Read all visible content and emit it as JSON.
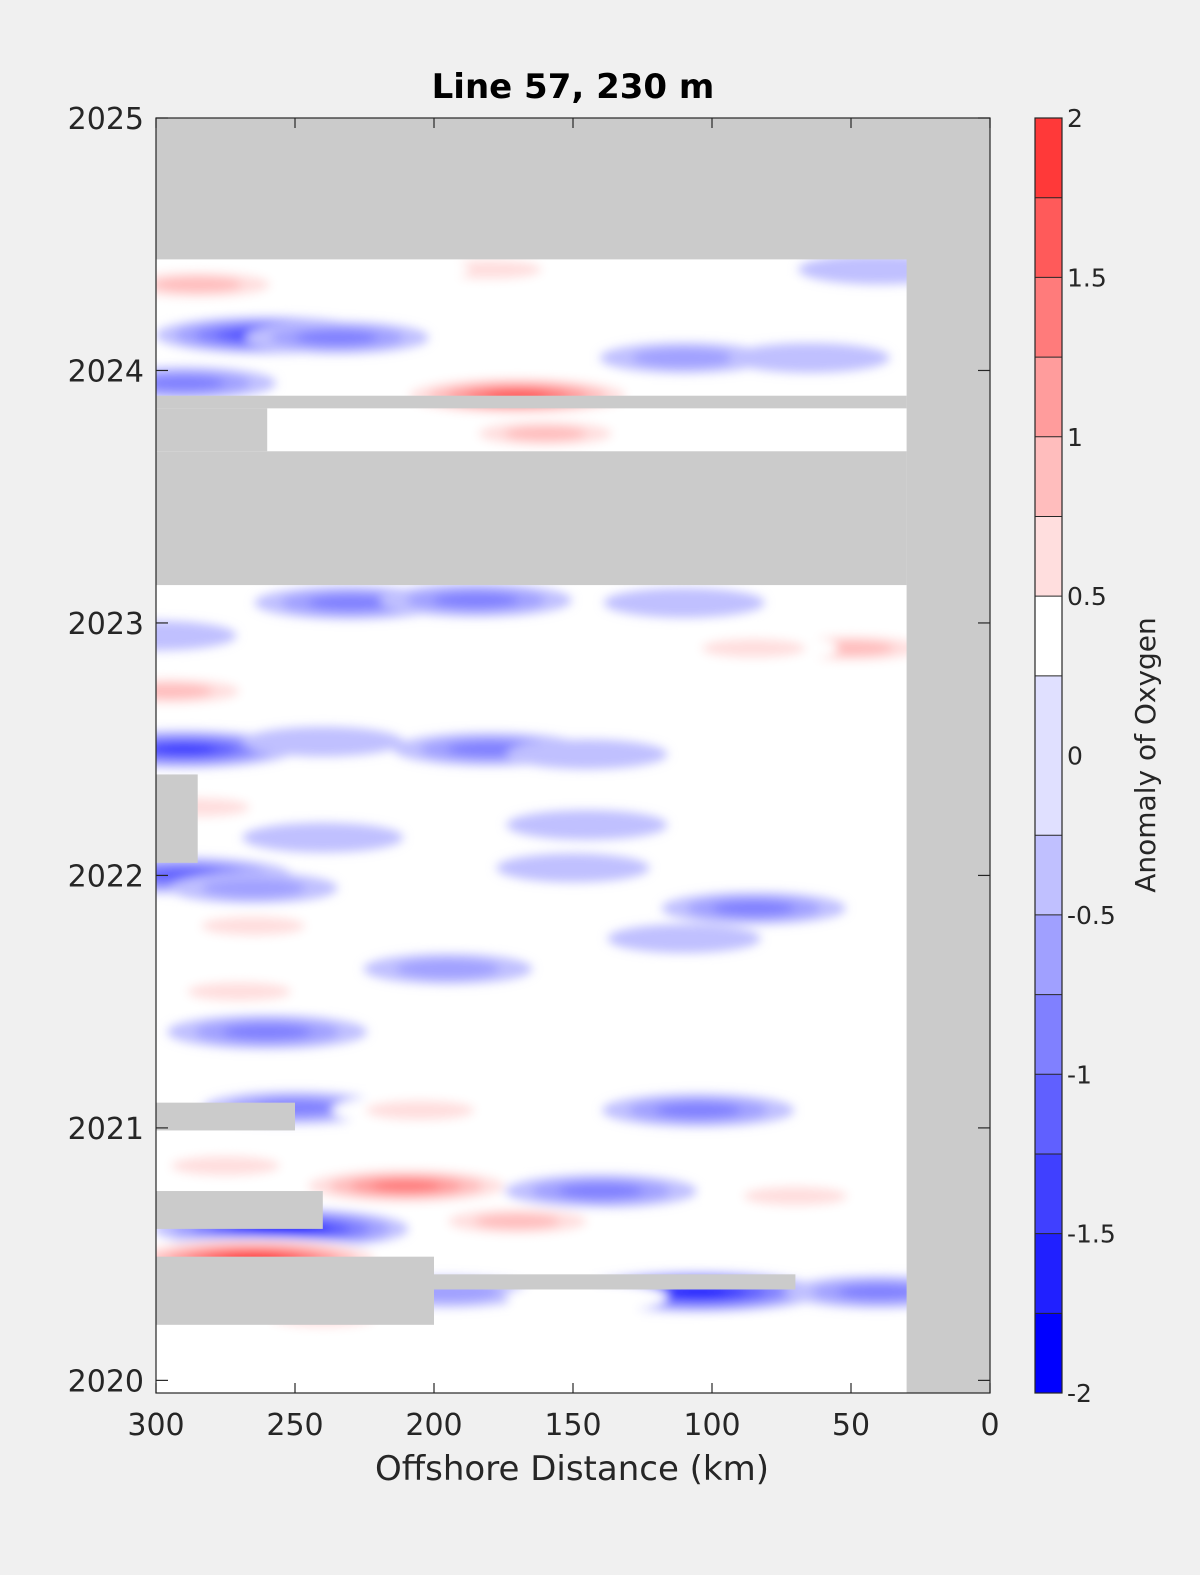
{
  "chart_data": {
    "type": "heatmap",
    "title": "Line 57, 230 m",
    "xlabel": "Offshore Distance (km)",
    "ylabel": "",
    "xlim": [
      300,
      0
    ],
    "x_reversed": true,
    "ylim": [
      2019.95,
      2025
    ],
    "xticks": [
      300,
      250,
      200,
      150,
      100,
      50,
      0
    ],
    "yticks": [
      2020,
      2021,
      2022,
      2023,
      2024,
      2025
    ],
    "colorbar": {
      "label": "Anomaly of Oxygen",
      "range": [
        -2,
        2
      ],
      "ticks": [
        -2,
        -1.5,
        -1,
        -0.5,
        0,
        0.5,
        1,
        1.5,
        2
      ],
      "tick_labels": [
        "-2",
        "-1.5",
        "-1",
        "-0.5",
        "0",
        "0.5",
        "1",
        "1.5",
        "2"
      ],
      "levels": [
        -2,
        -1.75,
        -1.5,
        -1.25,
        -1,
        -0.75,
        -0.5,
        -0.25,
        0.25,
        0.5,
        0.75,
        1,
        1.25,
        1.5,
        1.75,
        2
      ],
      "colors": [
        "#0000ff",
        "#2020ff",
        "#4040ff",
        "#6060ff",
        "#8080ff",
        "#a0a0ff",
        "#c0c0ff",
        "#e0e0ff",
        "#ffffff",
        "#ffdede",
        "#ffbdbd",
        "#ff9c9c",
        "#ff7b7b",
        "#ff5a5a",
        "#ff3939",
        "#ff0000"
      ]
    },
    "no_data_color": "#cbcbcb",
    "background_color": "#f0f0f0",
    "anomalies": [
      {
        "x": 285,
        "y": 2024.34,
        "v": 1.0
      },
      {
        "x": 260,
        "y": 2024.14,
        "v": -1.3
      },
      {
        "x": 235,
        "y": 2024.13,
        "v": -0.8
      },
      {
        "x": 290,
        "y": 2023.95,
        "v": -0.8
      },
      {
        "x": 170,
        "y": 2023.9,
        "v": 1.7
      },
      {
        "x": 160,
        "y": 2023.75,
        "v": 0.8
      },
      {
        "x": 100,
        "y": 2024.3,
        "v": 0.5
      },
      {
        "x": 110,
        "y": 2024.05,
        "v": -0.6
      },
      {
        "x": 65,
        "y": 2024.05,
        "v": -0.5
      },
      {
        "x": 180,
        "y": 2024.4,
        "v": 0.6
      },
      {
        "x": 215,
        "y": 2024.4,
        "v": 0.4
      },
      {
        "x": 40,
        "y": 2024.4,
        "v": -0.5
      },
      {
        "x": 230,
        "y": 2023.08,
        "v": -0.9
      },
      {
        "x": 185,
        "y": 2023.09,
        "v": -0.9
      },
      {
        "x": 110,
        "y": 2023.08,
        "v": -0.5
      },
      {
        "x": 300,
        "y": 2022.95,
        "v": -0.5
      },
      {
        "x": 295,
        "y": 2022.73,
        "v": 0.9
      },
      {
        "x": 50,
        "y": 2022.9,
        "v": 0.9
      },
      {
        "x": 85,
        "y": 2022.9,
        "v": 0.6
      },
      {
        "x": 165,
        "y": 2022.87,
        "v": 0.5
      },
      {
        "x": 110,
        "y": 2022.72,
        "v": 0.4
      },
      {
        "x": 290,
        "y": 2022.5,
        "v": -1.3
      },
      {
        "x": 240,
        "y": 2022.53,
        "v": -0.5
      },
      {
        "x": 180,
        "y": 2022.5,
        "v": -0.9
      },
      {
        "x": 145,
        "y": 2022.48,
        "v": -0.5
      },
      {
        "x": 285,
        "y": 2022.27,
        "v": 0.6
      },
      {
        "x": 290,
        "y": 2022.0,
        "v": -1.2
      },
      {
        "x": 265,
        "y": 2021.95,
        "v": -0.6
      },
      {
        "x": 240,
        "y": 2022.15,
        "v": -0.5
      },
      {
        "x": 145,
        "y": 2022.2,
        "v": -0.5
      },
      {
        "x": 150,
        "y": 2022.03,
        "v": -0.4
      },
      {
        "x": 85,
        "y": 2021.87,
        "v": -0.8
      },
      {
        "x": 110,
        "y": 2021.75,
        "v": -0.4
      },
      {
        "x": 265,
        "y": 2021.8,
        "v": 0.6
      },
      {
        "x": 190,
        "y": 2021.83,
        "v": 0.5
      },
      {
        "x": 195,
        "y": 2021.63,
        "v": -0.6
      },
      {
        "x": 270,
        "y": 2021.54,
        "v": 0.6
      },
      {
        "x": 115,
        "y": 2021.55,
        "v": 0.4
      },
      {
        "x": 260,
        "y": 2021.38,
        "v": -1.0
      },
      {
        "x": 165,
        "y": 2021.38,
        "v": 0.5
      },
      {
        "x": 250,
        "y": 2021.08,
        "v": -0.8
      },
      {
        "x": 205,
        "y": 2021.07,
        "v": 0.7
      },
      {
        "x": 105,
        "y": 2021.07,
        "v": -0.9
      },
      {
        "x": 275,
        "y": 2020.85,
        "v": 0.7
      },
      {
        "x": 210,
        "y": 2020.77,
        "v": 1.5
      },
      {
        "x": 170,
        "y": 2020.63,
        "v": 0.9
      },
      {
        "x": 140,
        "y": 2020.75,
        "v": -0.9
      },
      {
        "x": 70,
        "y": 2020.73,
        "v": 0.6
      },
      {
        "x": 255,
        "y": 2020.6,
        "v": -1.7
      },
      {
        "x": 265,
        "y": 2020.48,
        "v": 2.0
      },
      {
        "x": 105,
        "y": 2020.35,
        "v": -1.6
      },
      {
        "x": 195,
        "y": 2020.35,
        "v": -0.6
      },
      {
        "x": 145,
        "y": 2020.33,
        "v": 0.5
      },
      {
        "x": 40,
        "y": 2020.35,
        "v": -0.8
      },
      {
        "x": 240,
        "y": 2020.25,
        "v": 0.6
      },
      {
        "x": 80,
        "y": 2020.15,
        "v": 0.4
      },
      {
        "x": 105,
        "y": 2020.08,
        "v": 0.5
      }
    ],
    "nodata_regions": [
      {
        "x0": 300,
        "x1": 0,
        "y0": 2024.44,
        "y1": 2025
      },
      {
        "x0": 30,
        "x1": 0,
        "y0": 2019.95,
        "y1": 2025
      },
      {
        "x0": 300,
        "x1": 30,
        "y0": 2023.85,
        "y1": 2023.9
      },
      {
        "x0": 300,
        "x1": 260,
        "y0": 2023.68,
        "y1": 2023.85
      },
      {
        "x0": 300,
        "x1": 30,
        "y0": 2023.15,
        "y1": 2023.68
      },
      {
        "x0": 300,
        "x1": 285,
        "y0": 2022.05,
        "y1": 2022.4
      },
      {
        "x0": 300,
        "x1": 250,
        "y0": 2020.99,
        "y1": 2021.1
      },
      {
        "x0": 300,
        "x1": 240,
        "y0": 2020.6,
        "y1": 2020.75
      },
      {
        "x0": 300,
        "x1": 70,
        "y0": 2020.36,
        "y1": 2020.42
      },
      {
        "x0": 300,
        "x1": 200,
        "y0": 2020.22,
        "y1": 2020.49
      }
    ]
  }
}
